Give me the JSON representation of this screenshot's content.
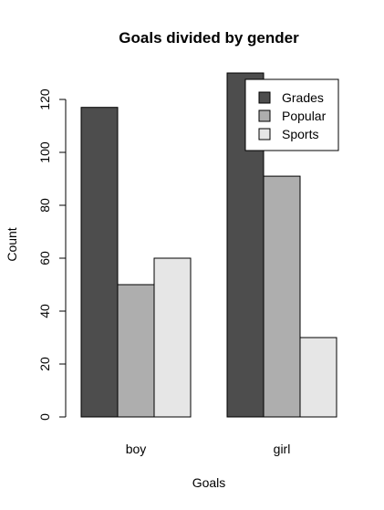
{
  "chart_data": {
    "type": "bar",
    "title": "Goals divided by gender",
    "xlabel": "Goals",
    "ylabel": "Count",
    "categories": [
      "boy",
      "girl"
    ],
    "series": [
      {
        "name": "Grades",
        "values": [
          117,
          130
        ],
        "color": "#4d4d4d"
      },
      {
        "name": "Popular",
        "values": [
          50,
          91
        ],
        "color": "#aeaeae"
      },
      {
        "name": "Sports",
        "values": [
          60,
          30
        ],
        "color": "#e6e6e6"
      }
    ],
    "ylim": [
      0,
      130
    ],
    "yticks": [
      0,
      20,
      40,
      60,
      80,
      100,
      120
    ],
    "grid": false,
    "legend_position": "top-right"
  }
}
